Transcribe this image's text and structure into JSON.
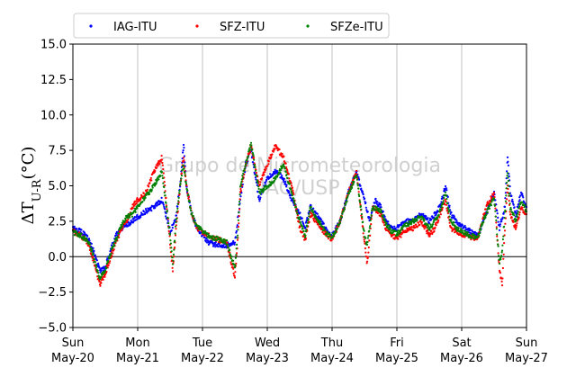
{
  "chart_data": {
    "type": "scatter",
    "ylabel": "ΔT_{U-R}(°C)",
    "ylim": [
      -5.0,
      15.0
    ],
    "xlim": [
      "2018-05-20T00:00",
      "2018-05-27T00:00"
    ],
    "yticks": [
      "−5.0",
      "−2.5",
      "0.0",
      "2.5",
      "5.0",
      "7.5",
      "10.0",
      "12.5",
      "15.0"
    ],
    "xticks": [
      {
        "day": "Sun",
        "date": "May-20"
      },
      {
        "day": "Mon",
        "date": "May-21"
      },
      {
        "day": "Tue",
        "date": "May-22"
      },
      {
        "day": "Wed",
        "date": "May-23"
      },
      {
        "day": "Thu",
        "date": "May-24"
      },
      {
        "day": "Fri",
        "date": "May-25"
      },
      {
        "day": "Sat",
        "date": "May-26"
      },
      {
        "day": "Sun",
        "date": "May-27"
      }
    ],
    "grid": "x-only",
    "zero_line": true,
    "legend_position": "top-left",
    "watermark": [
      "Grupo de Micrometeorologia",
      "IAG/USP"
    ],
    "series": [
      {
        "name": "IAG-ITU",
        "color": "#0000ff",
        "points": [
          [
            "2018-05-20T00:00",
            2.0
          ],
          [
            "2018-05-20T03:00",
            1.8
          ],
          [
            "2018-05-20T06:00",
            1.2
          ],
          [
            "2018-05-20T08:00",
            0.2
          ],
          [
            "2018-05-20T10:00",
            -1.0
          ],
          [
            "2018-05-20T12:00",
            -0.8
          ],
          [
            "2018-05-20T14:00",
            0.5
          ],
          [
            "2018-05-20T16:00",
            1.5
          ],
          [
            "2018-05-20T18:00",
            2.0
          ],
          [
            "2018-05-20T20:00",
            2.2
          ],
          [
            "2018-05-20T22:00",
            2.5
          ],
          [
            "2018-05-21T00:00",
            2.8
          ],
          [
            "2018-05-21T03:00",
            3.2
          ],
          [
            "2018-05-21T06:00",
            3.5
          ],
          [
            "2018-05-21T09:00",
            4.0
          ],
          [
            "2018-05-21T12:00",
            1.8
          ],
          [
            "2018-05-21T14:00",
            2.5
          ],
          [
            "2018-05-21T16:00",
            5.5
          ],
          [
            "2018-05-21T17:00",
            8.0
          ],
          [
            "2018-05-21T18:00",
            5.0
          ],
          [
            "2018-05-21T20:00",
            3.0
          ],
          [
            "2018-05-21T22:00",
            2.0
          ],
          [
            "2018-05-22T02:00",
            1.0
          ],
          [
            "2018-05-22T06:00",
            0.8
          ],
          [
            "2018-05-22T09:00",
            0.8
          ],
          [
            "2018-05-22T12:00",
            1.0
          ],
          [
            "2018-05-22T14:00",
            4.0
          ],
          [
            "2018-05-22T16:00",
            6.5
          ],
          [
            "2018-05-22T18:00",
            7.5
          ],
          [
            "2018-05-22T21:00",
            4.0
          ],
          [
            "2018-05-23T00:00",
            5.5
          ],
          [
            "2018-05-23T03:00",
            6.0
          ],
          [
            "2018-05-23T06:00",
            5.5
          ],
          [
            "2018-05-23T09:00",
            4.0
          ],
          [
            "2018-05-23T12:00",
            3.0
          ],
          [
            "2018-05-23T14:00",
            2.0
          ],
          [
            "2018-05-23T16:00",
            3.5
          ],
          [
            "2018-05-23T18:00",
            3.0
          ],
          [
            "2018-05-23T20:00",
            2.5
          ],
          [
            "2018-05-23T22:00",
            1.8
          ],
          [
            "2018-05-24T00:00",
            1.5
          ],
          [
            "2018-05-24T03:00",
            2.5
          ],
          [
            "2018-05-24T06:00",
            4.5
          ],
          [
            "2018-05-24T09:00",
            6.0
          ],
          [
            "2018-05-24T12:00",
            4.0
          ],
          [
            "2018-05-24T14:00",
            2.5
          ],
          [
            "2018-05-24T16:00",
            4.0
          ],
          [
            "2018-05-24T18:00",
            3.5
          ],
          [
            "2018-05-24T20:00",
            2.5
          ],
          [
            "2018-05-24T22:00",
            2.0
          ],
          [
            "2018-05-25T00:00",
            2.0
          ],
          [
            "2018-05-25T03:00",
            2.5
          ],
          [
            "2018-05-25T06:00",
            2.5
          ],
          [
            "2018-05-25T09:00",
            3.0
          ],
          [
            "2018-05-25T12:00",
            2.5
          ],
          [
            "2018-05-25T14:00",
            3.0
          ],
          [
            "2018-05-25T16:00",
            3.5
          ],
          [
            "2018-05-25T18:00",
            5.0
          ],
          [
            "2018-05-25T20:00",
            3.0
          ],
          [
            "2018-05-25T22:00",
            2.5
          ],
          [
            "2018-05-26T00:00",
            2.2
          ],
          [
            "2018-05-26T03:00",
            1.8
          ],
          [
            "2018-05-26T06:00",
            1.5
          ],
          [
            "2018-05-26T09:00",
            3.0
          ],
          [
            "2018-05-26T12:00",
            4.5
          ],
          [
            "2018-05-26T14:00",
            2.0
          ],
          [
            "2018-05-26T16:00",
            3.5
          ],
          [
            "2018-05-26T17:00",
            7.0
          ],
          [
            "2018-05-26T18:00",
            4.5
          ],
          [
            "2018-05-26T20:00",
            3.0
          ],
          [
            "2018-05-26T22:00",
            4.5
          ],
          [
            "2018-05-27T00:00",
            3.5
          ]
        ]
      },
      {
        "name": "SFZ-ITU",
        "color": "#ff0000",
        "points": [
          [
            "2018-05-20T00:00",
            1.8
          ],
          [
            "2018-05-20T03:00",
            1.5
          ],
          [
            "2018-05-20T06:00",
            0.8
          ],
          [
            "2018-05-20T08:00",
            -0.5
          ],
          [
            "2018-05-20T10:00",
            -2.0
          ],
          [
            "2018-05-20T12:00",
            -1.2
          ],
          [
            "2018-05-20T14:00",
            0.0
          ],
          [
            "2018-05-20T16:00",
            1.0
          ],
          [
            "2018-05-20T18:00",
            2.0
          ],
          [
            "2018-05-20T20:00",
            2.5
          ],
          [
            "2018-05-20T22:00",
            3.5
          ],
          [
            "2018-05-21T00:00",
            4.0
          ],
          [
            "2018-05-21T03:00",
            4.5
          ],
          [
            "2018-05-21T06:00",
            6.0
          ],
          [
            "2018-05-21T09:00",
            7.0
          ],
          [
            "2018-05-21T12:00",
            1.0
          ],
          [
            "2018-05-21T13:00",
            -1.0
          ],
          [
            "2018-05-21T14:00",
            1.5
          ],
          [
            "2018-05-21T16:00",
            5.5
          ],
          [
            "2018-05-21T17:00",
            7.0
          ],
          [
            "2018-05-21T18:00",
            5.0
          ],
          [
            "2018-05-21T20:00",
            3.0
          ],
          [
            "2018-05-21T22:00",
            2.0
          ],
          [
            "2018-05-22T02:00",
            1.5
          ],
          [
            "2018-05-22T06:00",
            1.2
          ],
          [
            "2018-05-22T09:00",
            1.0
          ],
          [
            "2018-05-22T12:00",
            -1.5
          ],
          [
            "2018-05-22T13:00",
            1.0
          ],
          [
            "2018-05-22T14:00",
            4.5
          ],
          [
            "2018-05-22T16:00",
            6.5
          ],
          [
            "2018-05-22T18:00",
            7.8
          ],
          [
            "2018-05-22T21:00",
            5.0
          ],
          [
            "2018-05-23T00:00",
            6.5
          ],
          [
            "2018-05-23T03:00",
            7.8
          ],
          [
            "2018-05-23T06:00",
            7.0
          ],
          [
            "2018-05-23T09:00",
            5.0
          ],
          [
            "2018-05-23T12:00",
            2.0
          ],
          [
            "2018-05-23T14:00",
            1.2
          ],
          [
            "2018-05-23T16:00",
            3.0
          ],
          [
            "2018-05-23T18:00",
            2.5
          ],
          [
            "2018-05-23T20:00",
            2.0
          ],
          [
            "2018-05-23T22:00",
            1.5
          ],
          [
            "2018-05-24T00:00",
            1.2
          ],
          [
            "2018-05-24T03:00",
            2.5
          ],
          [
            "2018-05-24T06:00",
            4.5
          ],
          [
            "2018-05-24T09:00",
            6.0
          ],
          [
            "2018-05-24T12:00",
            1.0
          ],
          [
            "2018-05-24T13:00",
            -0.5
          ],
          [
            "2018-05-24T15:00",
            3.5
          ],
          [
            "2018-05-24T18:00",
            3.0
          ],
          [
            "2018-05-24T20:00",
            2.0
          ],
          [
            "2018-05-24T22:00",
            1.5
          ],
          [
            "2018-05-25T00:00",
            1.3
          ],
          [
            "2018-05-25T03:00",
            1.8
          ],
          [
            "2018-05-25T06:00",
            2.0
          ],
          [
            "2018-05-25T09:00",
            2.5
          ],
          [
            "2018-05-25T12:00",
            1.5
          ],
          [
            "2018-05-25T14:00",
            2.0
          ],
          [
            "2018-05-25T16:00",
            3.0
          ],
          [
            "2018-05-25T18:00",
            4.0
          ],
          [
            "2018-05-25T20:00",
            2.0
          ],
          [
            "2018-05-25T22:00",
            1.8
          ],
          [
            "2018-05-26T00:00",
            1.6
          ],
          [
            "2018-05-26T03:00",
            1.4
          ],
          [
            "2018-05-26T06:00",
            1.3
          ],
          [
            "2018-05-26T09:00",
            3.5
          ],
          [
            "2018-05-26T12:00",
            4.5
          ],
          [
            "2018-05-26T14:00",
            -1.0
          ],
          [
            "2018-05-26T15:00",
            -2.0
          ],
          [
            "2018-05-26T16:00",
            2.0
          ],
          [
            "2018-05-26T17:00",
            5.0
          ],
          [
            "2018-05-26T18:00",
            3.0
          ],
          [
            "2018-05-26T20:00",
            2.0
          ],
          [
            "2018-05-26T22:00",
            3.5
          ],
          [
            "2018-05-27T00:00",
            3.0
          ]
        ]
      },
      {
        "name": "SFZe-ITU",
        "color": "#008000",
        "points": [
          [
            "2018-05-20T00:00",
            1.7
          ],
          [
            "2018-05-20T03:00",
            1.5
          ],
          [
            "2018-05-20T06:00",
            1.0
          ],
          [
            "2018-05-20T08:00",
            -0.3
          ],
          [
            "2018-05-20T10:00",
            -1.5
          ],
          [
            "2018-05-20T12:00",
            -1.0
          ],
          [
            "2018-05-20T14:00",
            0.3
          ],
          [
            "2018-05-20T16:00",
            1.2
          ],
          [
            "2018-05-20T18:00",
            2.2
          ],
          [
            "2018-05-20T20:00",
            2.8
          ],
          [
            "2018-05-20T22:00",
            3.0
          ],
          [
            "2018-05-21T00:00",
            3.5
          ],
          [
            "2018-05-21T03:00",
            4.2
          ],
          [
            "2018-05-21T06:00",
            5.0
          ],
          [
            "2018-05-21T09:00",
            6.0
          ],
          [
            "2018-05-21T12:00",
            1.5
          ],
          [
            "2018-05-21T13:00",
            -0.5
          ],
          [
            "2018-05-21T14:00",
            2.0
          ],
          [
            "2018-05-21T16:00",
            5.5
          ],
          [
            "2018-05-21T17:00",
            6.5
          ],
          [
            "2018-05-21T18:00",
            5.0
          ],
          [
            "2018-05-21T20:00",
            3.0
          ],
          [
            "2018-05-21T22:00",
            2.2
          ],
          [
            "2018-05-22T02:00",
            1.5
          ],
          [
            "2018-05-22T06:00",
            1.2
          ],
          [
            "2018-05-22T09:00",
            1.0
          ],
          [
            "2018-05-22T12:00",
            -0.8
          ],
          [
            "2018-05-22T13:00",
            1.5
          ],
          [
            "2018-05-22T14:00",
            5.0
          ],
          [
            "2018-05-22T16:00",
            6.5
          ],
          [
            "2018-05-22T18:00",
            8.0
          ],
          [
            "2018-05-22T21:00",
            4.5
          ],
          [
            "2018-05-23T00:00",
            5.0
          ],
          [
            "2018-05-23T03:00",
            5.5
          ],
          [
            "2018-05-23T06:00",
            6.5
          ],
          [
            "2018-05-23T09:00",
            4.5
          ],
          [
            "2018-05-23T12:00",
            2.5
          ],
          [
            "2018-05-23T14:00",
            1.5
          ],
          [
            "2018-05-23T16:00",
            3.5
          ],
          [
            "2018-05-23T18:00",
            2.8
          ],
          [
            "2018-05-23T20:00",
            2.2
          ],
          [
            "2018-05-23T22:00",
            1.6
          ],
          [
            "2018-05-24T00:00",
            1.4
          ],
          [
            "2018-05-24T03:00",
            2.5
          ],
          [
            "2018-05-24T06:00",
            4.3
          ],
          [
            "2018-05-24T09:00",
            5.8
          ],
          [
            "2018-05-24T12:00",
            1.5
          ],
          [
            "2018-05-24T13:00",
            0.8
          ],
          [
            "2018-05-24T15:00",
            3.5
          ],
          [
            "2018-05-24T18:00",
            3.2
          ],
          [
            "2018-05-24T20:00",
            2.3
          ],
          [
            "2018-05-24T22:00",
            1.8
          ],
          [
            "2018-05-25T00:00",
            1.6
          ],
          [
            "2018-05-25T03:00",
            2.2
          ],
          [
            "2018-05-25T06:00",
            2.5
          ],
          [
            "2018-05-25T09:00",
            2.8
          ],
          [
            "2018-05-25T12:00",
            2.0
          ],
          [
            "2018-05-25T14:00",
            2.5
          ],
          [
            "2018-05-25T16:00",
            3.2
          ],
          [
            "2018-05-25T18:00",
            4.5
          ],
          [
            "2018-05-25T20:00",
            2.5
          ],
          [
            "2018-05-25T22:00",
            2.0
          ],
          [
            "2018-05-26T00:00",
            1.8
          ],
          [
            "2018-05-26T03:00",
            1.5
          ],
          [
            "2018-05-26T06:00",
            1.4
          ],
          [
            "2018-05-26T09:00",
            3.0
          ],
          [
            "2018-05-26T12:00",
            4.2
          ],
          [
            "2018-05-26T14:00",
            -0.5
          ],
          [
            "2018-05-26T15:00",
            0.5
          ],
          [
            "2018-05-26T16:00",
            3.0
          ],
          [
            "2018-05-26T17:00",
            6.0
          ],
          [
            "2018-05-26T18:00",
            3.5
          ],
          [
            "2018-05-26T20:00",
            2.5
          ],
          [
            "2018-05-26T22:00",
            4.0
          ],
          [
            "2018-05-27T00:00",
            3.2
          ]
        ]
      }
    ]
  }
}
